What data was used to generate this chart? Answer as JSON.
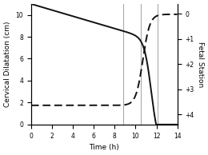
{
  "title": "",
  "xlabel": "Time (h)",
  "ylabel_left": "Cervical Dilatation (cm)",
  "ylabel_right": "Fetal Station",
  "xlim": [
    0,
    14
  ],
  "ylim_left": [
    0,
    11
  ],
  "ylim_right_bottom": 4.4,
  "ylim_right_top": -0.4,
  "right_ytick_labels": [
    "0",
    "+1",
    "+2",
    "+3",
    "+4"
  ],
  "right_ytick_positions": [
    0,
    1,
    2,
    3,
    4
  ],
  "xticks": [
    0,
    2,
    4,
    6,
    8,
    10,
    12,
    14
  ],
  "yticks_left": [
    0,
    2,
    4,
    6,
    8,
    10
  ],
  "vline_positions": [
    8.8,
    10.5,
    12.1
  ],
  "vline_color": "#aaaaaa",
  "line_color": "#111111",
  "bg_color": "#ffffff",
  "figsize": [
    2.6,
    1.94
  ],
  "dpi": 100
}
